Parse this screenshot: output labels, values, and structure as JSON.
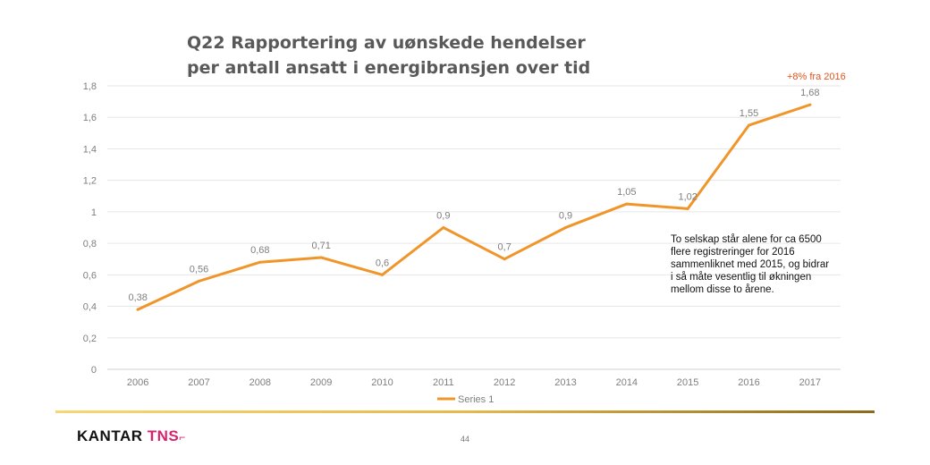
{
  "header": {
    "title_line1": "Q22 Rapportering av uønskede hendelser",
    "title_line2": "per antall ansatt i energibransjen over tid"
  },
  "callout": "+8% fra 2016",
  "note": "To selskap står alene for ca 6500 flere registreringer for 2016 sammenliknet med 2015, og bidrar i så måte vesentlig til økningen mellom disse to årene.",
  "footer": {
    "brand_part1": "KANTAR",
    "brand_part2": "TNS",
    "brand_mark": "⌐",
    "page_number": "44"
  },
  "colors": {
    "line": "#f0952a",
    "grid": "#e6e6e6",
    "axis_text": "#7f7f7f",
    "title": "#595959",
    "callout": "#e0541c",
    "brand_accent": "#d6246e"
  },
  "chart_data": {
    "type": "line",
    "title": "Q22 Rapportering av uønskede hendelser per antall ansatt i energibransjen over tid",
    "xlabel": "",
    "ylabel": "",
    "categories": [
      "2006",
      "2007",
      "2008",
      "2009",
      "2010",
      "2011",
      "2012",
      "2013",
      "2014",
      "2015",
      "2016",
      "2017"
    ],
    "series": [
      {
        "name": "Series 1",
        "values": [
          0.38,
          0.56,
          0.68,
          0.71,
          0.6,
          0.9,
          0.7,
          0.9,
          1.05,
          1.02,
          1.55,
          1.68
        ],
        "labels": [
          "0,38",
          "0,56",
          "0,68",
          "0,71",
          "0,6",
          "0,9",
          "0,7",
          "0,9",
          "1,05",
          "1,02",
          "1,55",
          "1,68"
        ]
      }
    ],
    "ylim": [
      0,
      1.8
    ],
    "yticks": [
      0,
      0.2,
      0.4,
      0.6,
      0.8,
      1,
      1.2,
      1.4,
      1.6,
      1.8
    ],
    "ytick_labels": [
      "0",
      "0,2",
      "0,4",
      "0,6",
      "0,8",
      "1",
      "1,2",
      "1,4",
      "1,6",
      "1,8"
    ],
    "grid": true,
    "legend": "bottom"
  }
}
